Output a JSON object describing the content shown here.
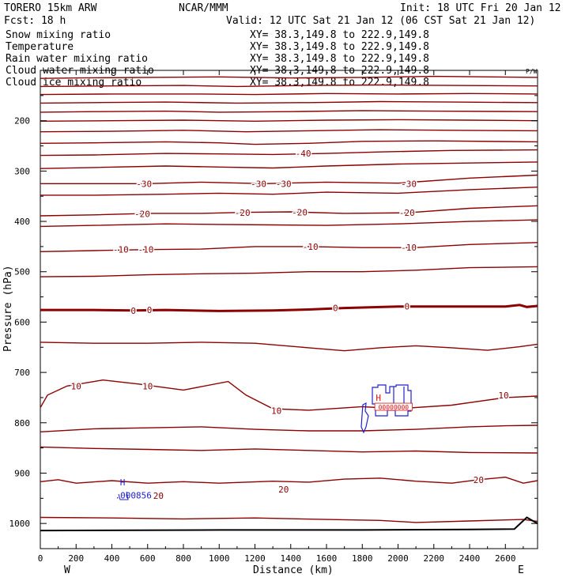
{
  "header": {
    "model": "TORERO  15km ARW",
    "center": "NCAR/MMM",
    "init": "Init: 18 UTC Fri 20 Jan 12",
    "fcst": "Fcst:   18 h",
    "valid": "Valid: 12 UTC Sat 21 Jan 12 (06 CST Sat 21 Jan 12)"
  },
  "legend": [
    {
      "name": "Snow mixing ratio",
      "xy": "XY=  38.3,149.8 to 222.9,149.8",
      "color": "#000000"
    },
    {
      "name": "Temperature",
      "xy": "XY=  38.3,149.8 to 222.9,149.8",
      "color": "#8b0000"
    },
    {
      "name": "Rain water mixing ratio",
      "xy": "XY=  38.3,149.8 to 222.9,149.8",
      "color": "#dd1111"
    },
    {
      "name": "Cloud water mixing ratio",
      "xy": "XY=  38.3,149.8 to 222.9,149.8",
      "color": "#2222cc"
    },
    {
      "name": "Cloud ice mixing ratio",
      "xy": "XY=  38.3,149.8 to 222.9,149.8",
      "color": "#000000"
    }
  ],
  "chart_data": {
    "type": "contour cross-section",
    "xlabel": "Distance (km)",
    "ylabel": "Pressure (hPa)",
    "xlim": [
      0,
      2780
    ],
    "ylim": [
      1050,
      100
    ],
    "x_ticks": [
      "0",
      "200",
      "400",
      "600",
      "800",
      "1000",
      "1200",
      "1400",
      "1600",
      "1800",
      "2000",
      "2200",
      "2400",
      "2600"
    ],
    "y_ticks": [
      "200",
      "300",
      "400",
      "500",
      "600",
      "700",
      "800",
      "900",
      "1000"
    ],
    "x_end_labels": {
      "left": "W",
      "right": "E"
    },
    "temperature_labels": [
      {
        "text": "-40",
        "x": 1470,
        "p": 265
      },
      {
        "text": "-30",
        "x": 580,
        "p": 325
      },
      {
        "text": "-30",
        "x": 1220,
        "p": 325
      },
      {
        "text": "-30",
        "x": 1360,
        "p": 325
      },
      {
        "text": "-30",
        "x": 2060,
        "p": 325
      },
      {
        "text": "-20",
        "x": 570,
        "p": 385
      },
      {
        "text": "-20",
        "x": 1130,
        "p": 383
      },
      {
        "text": "-20",
        "x": 1450,
        "p": 382
      },
      {
        "text": "-20",
        "x": 2050,
        "p": 383
      },
      {
        "text": "-10",
        "x": 450,
        "p": 456
      },
      {
        "text": "-10",
        "x": 590,
        "p": 456
      },
      {
        "text": "-10",
        "x": 1510,
        "p": 450
      },
      {
        "text": "-10",
        "x": 2060,
        "p": 452
      },
      {
        "text": "0",
        "x": 520,
        "p": 577
      },
      {
        "text": "0",
        "x": 610,
        "p": 576
      },
      {
        "text": "0",
        "x": 1650,
        "p": 572
      },
      {
        "text": "0",
        "x": 2050,
        "p": 569
      },
      {
        "text": "10",
        "x": 200,
        "p": 727
      },
      {
        "text": "10",
        "x": 600,
        "p": 727
      },
      {
        "text": "10",
        "x": 1320,
        "p": 776
      },
      {
        "text": "10",
        "x": 2590,
        "p": 745
      },
      {
        "text": "20",
        "x": 660,
        "p": 945
      },
      {
        "text": "20",
        "x": 1360,
        "p": 932
      },
      {
        "text": "20",
        "x": 2450,
        "p": 913
      }
    ],
    "cloud_labels": [
      {
        "text": "H",
        "x": 460,
        "p": 918
      },
      {
        "text": ".000856",
        "x": 520,
        "p": 944
      },
      {
        "text": "H",
        "x": 1890,
        "p": 750
      }
    ],
    "rain_label": {
      "text": "00000000",
      "x": 1975,
      "p": 769
    },
    "contour_lines": [
      {
        "w": 1.4,
        "pts": [
          [
            0,
            116
          ],
          [
            200,
            115
          ],
          [
            600,
            114
          ],
          [
            1000,
            113
          ],
          [
            1400,
            115
          ],
          [
            1800,
            114
          ],
          [
            2200,
            112
          ],
          [
            2780,
            114
          ]
        ]
      },
      {
        "w": 1.4,
        "pts": [
          [
            0,
            132
          ],
          [
            400,
            131
          ],
          [
            800,
            130
          ],
          [
            1100,
            132
          ],
          [
            1500,
            130
          ],
          [
            1900,
            129
          ],
          [
            2300,
            130
          ],
          [
            2780,
            131
          ]
        ]
      },
      {
        "w": 1.4,
        "pts": [
          [
            0,
            148
          ],
          [
            400,
            147
          ],
          [
            900,
            147
          ],
          [
            1200,
            148
          ],
          [
            1600,
            146
          ],
          [
            2000,
            147
          ],
          [
            2400,
            146
          ],
          [
            2780,
            147
          ]
        ]
      },
      {
        "w": 1.4,
        "pts": [
          [
            0,
            165
          ],
          [
            300,
            164
          ],
          [
            700,
            163
          ],
          [
            1100,
            165
          ],
          [
            1500,
            164
          ],
          [
            1900,
            162
          ],
          [
            2300,
            163
          ],
          [
            2780,
            164
          ]
        ]
      },
      {
        "w": 1.4,
        "pts": [
          [
            0,
            183
          ],
          [
            300,
            182
          ],
          [
            700,
            181
          ],
          [
            1000,
            183
          ],
          [
            1400,
            182
          ],
          [
            1800,
            180
          ],
          [
            2200,
            181
          ],
          [
            2780,
            182
          ]
        ]
      },
      {
        "w": 1.4,
        "pts": [
          [
            0,
            201
          ],
          [
            400,
            200
          ],
          [
            800,
            199
          ],
          [
            1200,
            201
          ],
          [
            1600,
            199
          ],
          [
            2000,
            198
          ],
          [
            2400,
            199
          ],
          [
            2780,
            200
          ]
        ]
      },
      {
        "w": 1.4,
        "pts": [
          [
            0,
            222
          ],
          [
            400,
            221
          ],
          [
            800,
            219
          ],
          [
            1150,
            222
          ],
          [
            1500,
            220
          ],
          [
            1900,
            218
          ],
          [
            2300,
            219
          ],
          [
            2780,
            220
          ]
        ]
      },
      {
        "w": 1.4,
        "pts": [
          [
            0,
            245
          ],
          [
            300,
            244
          ],
          [
            700,
            242
          ],
          [
            1000,
            244
          ],
          [
            1200,
            247
          ],
          [
            1500,
            245
          ],
          [
            1800,
            241
          ],
          [
            2200,
            240
          ],
          [
            2780,
            242
          ]
        ]
      },
      {
        "w": 1.4,
        "pts": [
          [
            0,
            269
          ],
          [
            300,
            268
          ],
          [
            700,
            265
          ],
          [
            1000,
            266
          ],
          [
            1300,
            267
          ],
          [
            1600,
            265
          ],
          [
            1900,
            262
          ],
          [
            2300,
            259
          ],
          [
            2780,
            258
          ]
        ]
      },
      {
        "w": 1.4,
        "pts": [
          [
            0,
            295
          ],
          [
            300,
            293
          ],
          [
            700,
            290
          ],
          [
            1000,
            292
          ],
          [
            1300,
            294
          ],
          [
            1600,
            290
          ],
          [
            2000,
            286
          ],
          [
            2400,
            284
          ],
          [
            2780,
            282
          ]
        ]
      },
      {
        "w": 1.4,
        "pts": [
          [
            0,
            325
          ],
          [
            300,
            325
          ],
          [
            600,
            325
          ],
          [
            900,
            322
          ],
          [
            1250,
            325
          ],
          [
            1600,
            322
          ],
          [
            2000,
            324
          ],
          [
            2400,
            314
          ],
          [
            2780,
            308
          ]
        ]
      },
      {
        "w": 1.4,
        "pts": [
          [
            0,
            348
          ],
          [
            300,
            348
          ],
          [
            700,
            346
          ],
          [
            1000,
            344
          ],
          [
            1300,
            346
          ],
          [
            1600,
            342
          ],
          [
            2000,
            344
          ],
          [
            2400,
            337
          ],
          [
            2780,
            332
          ]
        ]
      },
      {
        "w": 1.4,
        "pts": [
          [
            0,
            389
          ],
          [
            300,
            387
          ],
          [
            600,
            384
          ],
          [
            900,
            384
          ],
          [
            1150,
            382
          ],
          [
            1400,
            381
          ],
          [
            1700,
            384
          ],
          [
            2050,
            383
          ],
          [
            2400,
            374
          ],
          [
            2780,
            369
          ]
        ]
      },
      {
        "w": 1.4,
        "pts": [
          [
            0,
            410
          ],
          [
            300,
            408
          ],
          [
            700,
            405
          ],
          [
            1000,
            406
          ],
          [
            1300,
            407
          ],
          [
            1600,
            408
          ],
          [
            2000,
            405
          ],
          [
            2400,
            400
          ],
          [
            2780,
            397
          ]
        ]
      },
      {
        "w": 1.4,
        "pts": [
          [
            0,
            460
          ],
          [
            300,
            458
          ],
          [
            600,
            456
          ],
          [
            900,
            455
          ],
          [
            1200,
            450
          ],
          [
            1500,
            450
          ],
          [
            1800,
            452
          ],
          [
            2100,
            452
          ],
          [
            2400,
            446
          ],
          [
            2780,
            442
          ]
        ]
      },
      {
        "w": 1.4,
        "pts": [
          [
            0,
            510
          ],
          [
            300,
            509
          ],
          [
            600,
            506
          ],
          [
            900,
            504
          ],
          [
            1200,
            503
          ],
          [
            1500,
            500
          ],
          [
            1800,
            500
          ],
          [
            2100,
            497
          ],
          [
            2400,
            492
          ],
          [
            2780,
            490
          ]
        ]
      },
      {
        "w": 3,
        "pts": [
          [
            0,
            576
          ],
          [
            300,
            576
          ],
          [
            520,
            577
          ],
          [
            700,
            576
          ],
          [
            1000,
            578
          ],
          [
            1300,
            577
          ],
          [
            1500,
            575
          ],
          [
            1700,
            572
          ],
          [
            2000,
            569
          ],
          [
            2300,
            569
          ],
          [
            2600,
            569
          ],
          [
            2680,
            566
          ],
          [
            2720,
            570
          ],
          [
            2780,
            568
          ]
        ]
      },
      {
        "w": 1.4,
        "pts": [
          [
            0,
            640
          ],
          [
            300,
            642
          ],
          [
            600,
            642
          ],
          [
            900,
            640
          ],
          [
            1200,
            642
          ],
          [
            1500,
            651
          ],
          [
            1700,
            657
          ],
          [
            1900,
            651
          ],
          [
            2100,
            647
          ],
          [
            2300,
            651
          ],
          [
            2500,
            656
          ],
          [
            2680,
            649
          ],
          [
            2780,
            644
          ]
        ]
      },
      {
        "w": 1.4,
        "pts": [
          [
            0,
            770
          ],
          [
            40,
            745
          ],
          [
            150,
            727
          ],
          [
            350,
            715
          ],
          [
            550,
            723
          ],
          [
            800,
            735
          ],
          [
            1050,
            718
          ],
          [
            1150,
            745
          ],
          [
            1300,
            772
          ],
          [
            1500,
            775
          ],
          [
            1800,
            768
          ],
          [
            2000,
            772
          ],
          [
            2300,
            765
          ],
          [
            2600,
            750
          ],
          [
            2780,
            747
          ]
        ]
      },
      {
        "w": 1.4,
        "pts": [
          [
            0,
            818
          ],
          [
            300,
            812
          ],
          [
            600,
            810
          ],
          [
            900,
            808
          ],
          [
            1200,
            813
          ],
          [
            1500,
            816
          ],
          [
            1800,
            816
          ],
          [
            2100,
            813
          ],
          [
            2400,
            808
          ],
          [
            2600,
            806
          ],
          [
            2780,
            805
          ]
        ]
      },
      {
        "w": 1.4,
        "pts": [
          [
            0,
            848
          ],
          [
            300,
            851
          ],
          [
            600,
            853
          ],
          [
            900,
            855
          ],
          [
            1200,
            852
          ],
          [
            1500,
            855
          ],
          [
            1800,
            858
          ],
          [
            2100,
            856
          ],
          [
            2400,
            859
          ],
          [
            2780,
            860
          ]
        ]
      },
      {
        "w": 1.4,
        "pts": [
          [
            0,
            917
          ],
          [
            100,
            913
          ],
          [
            200,
            920
          ],
          [
            400,
            915
          ],
          [
            600,
            920
          ],
          [
            800,
            917
          ],
          [
            1000,
            920
          ],
          [
            1300,
            916
          ],
          [
            1500,
            918
          ],
          [
            1700,
            912
          ],
          [
            1900,
            910
          ],
          [
            2100,
            916
          ],
          [
            2300,
            920
          ],
          [
            2450,
            913
          ],
          [
            2600,
            908
          ],
          [
            2700,
            920
          ],
          [
            2780,
            915
          ]
        ]
      },
      {
        "w": 1.4,
        "pts": [
          [
            0,
            988
          ],
          [
            400,
            989
          ],
          [
            800,
            991
          ],
          [
            1200,
            989
          ],
          [
            1600,
            992
          ],
          [
            1900,
            994
          ],
          [
            2100,
            998
          ],
          [
            2400,
            995
          ],
          [
            2700,
            992
          ],
          [
            2780,
            996
          ]
        ]
      }
    ],
    "ground": [
      [
        0,
        1014
      ],
      [
        1000,
        1013
      ],
      [
        1800,
        1013
      ],
      [
        2400,
        1012
      ],
      [
        2650,
        1011
      ],
      [
        2720,
        988
      ],
      [
        2780,
        1000
      ]
    ]
  }
}
